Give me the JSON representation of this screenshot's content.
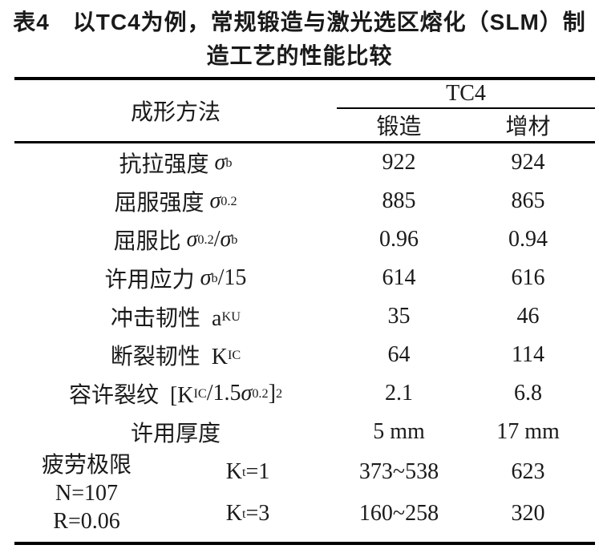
{
  "colors": {
    "text": "#1a1a1a",
    "rule": "#000000",
    "background": "#ffffff"
  },
  "title": {
    "line1": "表4　以TC4为例，常规锻造与激光选区熔化（SLM）制",
    "line2": "造工艺的性能比较"
  },
  "header": {
    "method": "成形方法",
    "group": "TC4",
    "col_forged": "锻造",
    "col_additive": "增材"
  },
  "rows": [
    {
      "label_parts": [
        {
          "t": "抗拉强度 "
        },
        {
          "t": "σ",
          "style": "i"
        },
        {
          "t": "b",
          "style": "sub"
        }
      ],
      "forged": "922",
      "additive": "924"
    },
    {
      "label_parts": [
        {
          "t": "屈服强度 "
        },
        {
          "t": "σ",
          "style": "i"
        },
        {
          "t": "0.2",
          "style": "sub"
        }
      ],
      "forged": "885",
      "additive": "865"
    },
    {
      "label_parts": [
        {
          "t": "屈服比 "
        },
        {
          "t": "σ",
          "style": "i"
        },
        {
          "t": "0.2",
          "style": "sub"
        },
        {
          "t": "/"
        },
        {
          "t": "σ",
          "style": "i"
        },
        {
          "t": "b",
          "style": "sub"
        }
      ],
      "forged": "0.96",
      "additive": "0.94"
    },
    {
      "label_parts": [
        {
          "t": "许用应力 "
        },
        {
          "t": "σ",
          "style": "i"
        },
        {
          "t": "b",
          "style": "sub"
        },
        {
          "t": "/15"
        }
      ],
      "forged": "614",
      "additive": "616"
    },
    {
      "label_parts": [
        {
          "t": "冲击韧性  a"
        },
        {
          "t": "KU",
          "style": "sub"
        }
      ],
      "forged": "35",
      "additive": "46"
    },
    {
      "label_parts": [
        {
          "t": "断裂韧性  K"
        },
        {
          "t": "IC",
          "style": "sub"
        }
      ],
      "forged": "64",
      "additive": "114"
    },
    {
      "label_parts": [
        {
          "t": "容许裂纹  [K"
        },
        {
          "t": "IC",
          "style": "sub"
        },
        {
          "t": "/1.5"
        },
        {
          "t": "σ",
          "style": "i"
        },
        {
          "t": "0.2",
          "style": "sub"
        },
        {
          "t": "]"
        },
        {
          "t": "2",
          "style": "sup"
        }
      ],
      "forged": "2.1",
      "additive": "6.8"
    },
    {
      "label_parts": [
        {
          "t": "许用厚度"
        }
      ],
      "forged": "5 mm",
      "additive": "17 mm"
    }
  ],
  "fatigue": {
    "condition_lines": [
      "疲劳极限",
      "N=107",
      "R=0.06"
    ],
    "rows": [
      {
        "kt_parts": [
          {
            "t": "K"
          },
          {
            "t": "t",
            "style": "sub"
          },
          {
            "t": "=1"
          }
        ],
        "forged": "373~538",
        "additive": "623"
      },
      {
        "kt_parts": [
          {
            "t": "K"
          },
          {
            "t": "t",
            "style": "sub"
          },
          {
            "t": "=3"
          }
        ],
        "forged": "160~258",
        "additive": "320"
      }
    ]
  }
}
